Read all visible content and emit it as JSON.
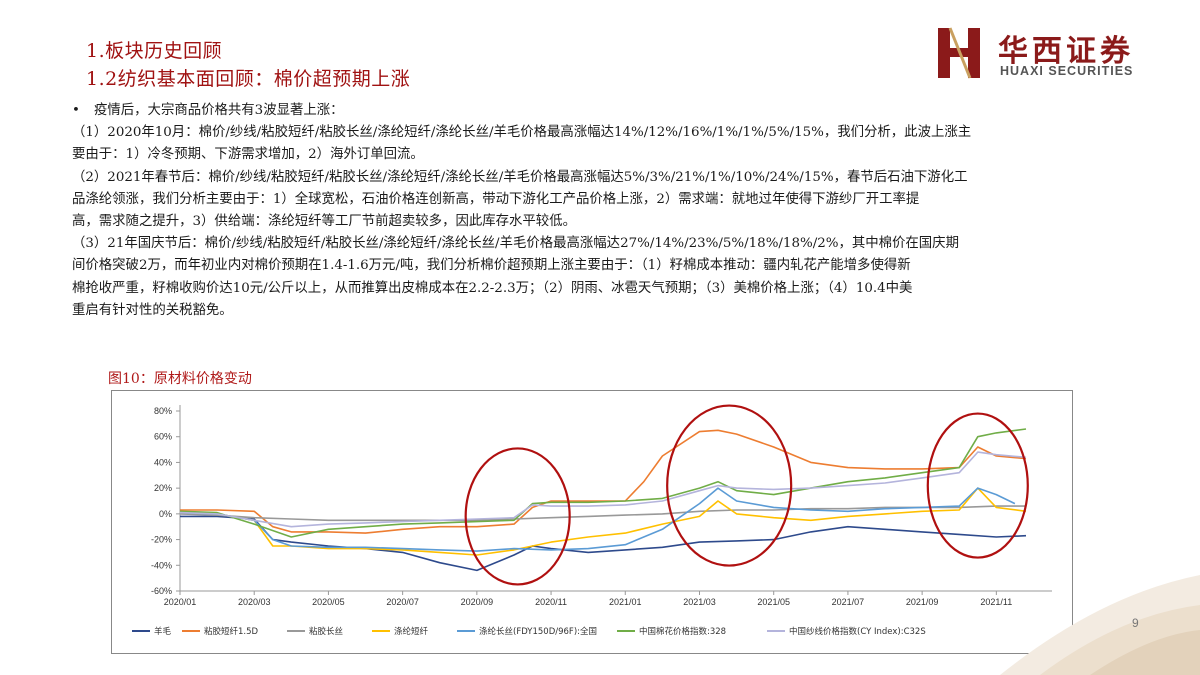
{
  "header": {
    "title1": "1.板块历史回顾",
    "title2": "1.2纺织基本面回顾：棉价超预期上涨"
  },
  "logo": {
    "name_cn": "华西证券",
    "name_en": "HUAXI SECURITIES",
    "mark_color": "#8b1a1a"
  },
  "body": {
    "bullet": "疫情后，大宗商品价格共有3波显著上涨：",
    "para1_line1": "（1）2020年10月：棉价/纱线/粘胶短纤/粘胶长丝/涤纶短纤/涤纶长丝/羊毛价格最高涨幅达14%/12%/16%/1%/1%/5%/15%，我们分析，此波上涨主",
    "para1_line2": "要由于：1）冷冬预期、下游需求增加，2）海外订单回流。",
    "para2_line1": "（2）2021年春节后：棉价/纱线/粘胶短纤/粘胶长丝/涤纶短纤/涤纶长丝/羊毛价格最高涨幅达5%/3%/21%/1%/10%/24%/15%，春节后石油下游化工",
    "para2_line2": "品涤纶领涨，我们分析主要由于：1）全球宽松，石油价格连创新高，带动下游化工产品价格上涨，2）需求端：就地过年使得下游纱厂开工率提",
    "para2_line3": "高，需求随之提升，3）供给端：涤纶短纤等工厂节前超卖较多，因此库存水平较低。",
    "para3_line1": "（3）21年国庆节后：棉价/纱线/粘胶短纤/粘胶长丝/涤纶短纤/涤纶长丝/羊毛价格最高涨幅达27%/14%/23%/5%/18%/18%/2%，其中棉价在国庆期",
    "para3_line2": "间价格突破2万，而年初业内对棉价预期在1.4-1.6万元/吨，我们分析棉价超预期上涨主要由于：（1）籽棉成本推动：疆内轧花产能增多使得新",
    "para3_line3": "棉抢收严重，籽棉收购价达10元/公斤以上，从而推算出皮棉成本在2.2-2.3万；（2）阴雨、冰雹天气预期；（3）美棉价格上涨；（4）10.4中美",
    "para3_line4": "重启有针对性的关税豁免。"
  },
  "figure": {
    "title": "图10：原材料价格变动"
  },
  "page_number": "9",
  "chart_data": {
    "type": "line",
    "title": "",
    "xlabel": "",
    "ylabel": "",
    "x_ticks": [
      "2020/01",
      "2020/03",
      "2020/05",
      "2020/07",
      "2020/09",
      "2020/11",
      "2021/01",
      "2021/03",
      "2021/05",
      "2021/07",
      "2021/09",
      "2021/11"
    ],
    "y_ticks": [
      "80%",
      "60%",
      "40%",
      "20%",
      "0%",
      "-20%",
      "-40%",
      "-60%"
    ],
    "ylim": [
      -60,
      80
    ],
    "x_range_months": [
      0,
      23.5
    ],
    "legend_position": "bottom",
    "grid": false,
    "highlight_circles": [
      "2020/11",
      "2021/03",
      "2021/11"
    ],
    "series": [
      {
        "name": "羊毛",
        "color": "#2e4a8c",
        "x": [
          0,
          1,
          2,
          2.5,
          3,
          4,
          5,
          6,
          7,
          8,
          9,
          9.5,
          10,
          11,
          12,
          13,
          14,
          15,
          16,
          17,
          18,
          19,
          20,
          21,
          22,
          22.8
        ],
        "y": [
          -2,
          -2,
          -4,
          -20,
          -22,
          -25,
          -27,
          -30,
          -38,
          -44,
          -32,
          -25,
          -27,
          -30,
          -28,
          -26,
          -22,
          -21,
          -20,
          -14,
          -10,
          -12,
          -14,
          -16,
          -18,
          -17
        ]
      },
      {
        "name": "粘胶短纤1.5D",
        "color": "#ed7d31",
        "x": [
          0,
          1,
          2,
          2.5,
          3,
          4,
          5,
          6,
          7,
          8,
          9,
          9.5,
          10,
          11,
          12,
          12.5,
          13,
          14,
          14.5,
          15,
          16,
          17,
          18,
          19,
          20,
          21,
          21.5,
          22,
          22.8
        ],
        "y": [
          3,
          3,
          2,
          -10,
          -14,
          -14,
          -15,
          -12,
          -10,
          -10,
          -8,
          5,
          10,
          10,
          10,
          25,
          45,
          64,
          65,
          62,
          52,
          40,
          36,
          35,
          35,
          36,
          52,
          45,
          43
        ]
      },
      {
        "name": "粘胶长丝",
        "color": "#999999",
        "x": [
          0,
          1,
          2,
          3,
          4,
          5,
          6,
          7,
          8,
          9,
          10,
          11,
          12,
          13,
          14,
          15,
          16,
          17,
          18,
          19,
          20,
          21,
          22,
          22.8
        ],
        "y": [
          0,
          -1,
          -3,
          -4,
          -5,
          -5,
          -5,
          -5,
          -5,
          -4,
          -3,
          -2,
          -1,
          0,
          2,
          3,
          3,
          4,
          4,
          5,
          5,
          5,
          6,
          6
        ]
      },
      {
        "name": "涤纶短纤",
        "color": "#ffc000",
        "x": [
          0,
          1,
          2,
          2.5,
          3,
          4,
          5,
          6,
          7,
          8,
          9,
          10,
          11,
          12,
          13,
          14,
          14.5,
          15,
          16,
          17,
          18,
          19,
          20,
          21,
          21.5,
          22,
          22.8
        ],
        "y": [
          2,
          0,
          -5,
          -25,
          -25,
          -27,
          -27,
          -28,
          -30,
          -32,
          -28,
          -22,
          -18,
          -15,
          -8,
          -2,
          10,
          0,
          -3,
          -5,
          -2,
          0,
          2,
          3,
          20,
          5,
          2
        ]
      },
      {
        "name": "涤纶长丝(FDY150D/96F):全国",
        "color": "#5b9bd5",
        "x": [
          0,
          1,
          2,
          2.5,
          3,
          4,
          5,
          6,
          7,
          8,
          9,
          10,
          11,
          12,
          13,
          14,
          14.5,
          15,
          16,
          17,
          18,
          19,
          20,
          21,
          21.5,
          22,
          22.5
        ],
        "y": [
          1,
          0,
          -5,
          -20,
          -25,
          -26,
          -26,
          -27,
          -28,
          -29,
          -27,
          -28,
          -27,
          -24,
          -12,
          8,
          20,
          10,
          5,
          3,
          2,
          4,
          5,
          6,
          20,
          15,
          8
        ]
      },
      {
        "name": "中国棉花价格指数:328",
        "color": "#70ad47",
        "x": [
          0,
          1,
          2,
          3,
          4,
          5,
          6,
          7,
          8,
          9,
          9.5,
          10,
          11,
          12,
          13,
          14,
          14.5,
          15,
          16,
          17,
          18,
          19,
          20,
          21,
          21.5,
          22,
          22.8
        ],
        "y": [
          2,
          1,
          -8,
          -18,
          -12,
          -10,
          -8,
          -7,
          -6,
          -5,
          8,
          9,
          9,
          10,
          12,
          20,
          25,
          18,
          15,
          20,
          25,
          28,
          32,
          36,
          60,
          63,
          66
        ]
      },
      {
        "name": "中国纱线价格指数(CY Index):C32S",
        "color": "#b4b4dc",
        "x": [
          0,
          1,
          2,
          3,
          4,
          5,
          6,
          7,
          8,
          9,
          9.5,
          10,
          11,
          12,
          13,
          14,
          14.5,
          15,
          16,
          17,
          18,
          19,
          20,
          21,
          21.5,
          22,
          22.8
        ],
        "y": [
          1,
          0,
          -5,
          -10,
          -8,
          -7,
          -6,
          -5,
          -4,
          -3,
          7,
          6,
          6,
          7,
          10,
          18,
          22,
          20,
          19,
          20,
          22,
          24,
          28,
          32,
          48,
          46,
          44
        ]
      }
    ]
  }
}
